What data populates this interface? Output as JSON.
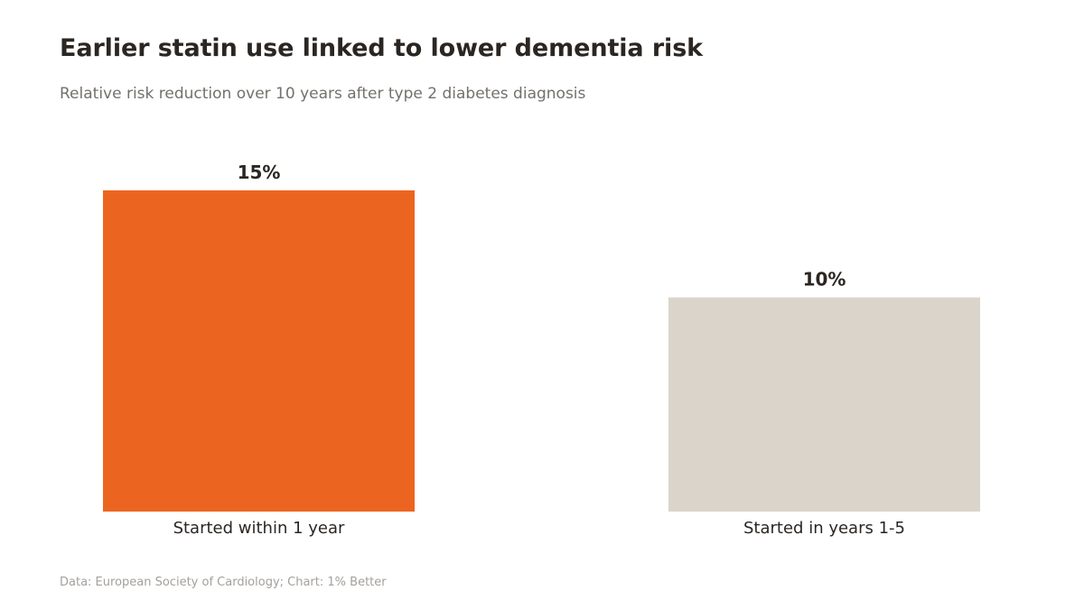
{
  "chart_data": {
    "type": "bar",
    "title": "Earlier statin use linked to lower dementia risk",
    "subtitle": "Relative risk reduction over 10 years after type 2 diabetes diagnosis",
    "categories": [
      "Started within 1 year",
      "Started in years 1-5"
    ],
    "values": [
      15,
      10
    ],
    "value_labels": [
      "15%",
      "10%"
    ],
    "colors": [
      "#ec6520",
      "#dad4cb"
    ],
    "ylim": [
      0,
      15
    ],
    "grid": false,
    "legend": "none",
    "source": "Data: European Society of Cardiology; Chart: 1% Better"
  }
}
